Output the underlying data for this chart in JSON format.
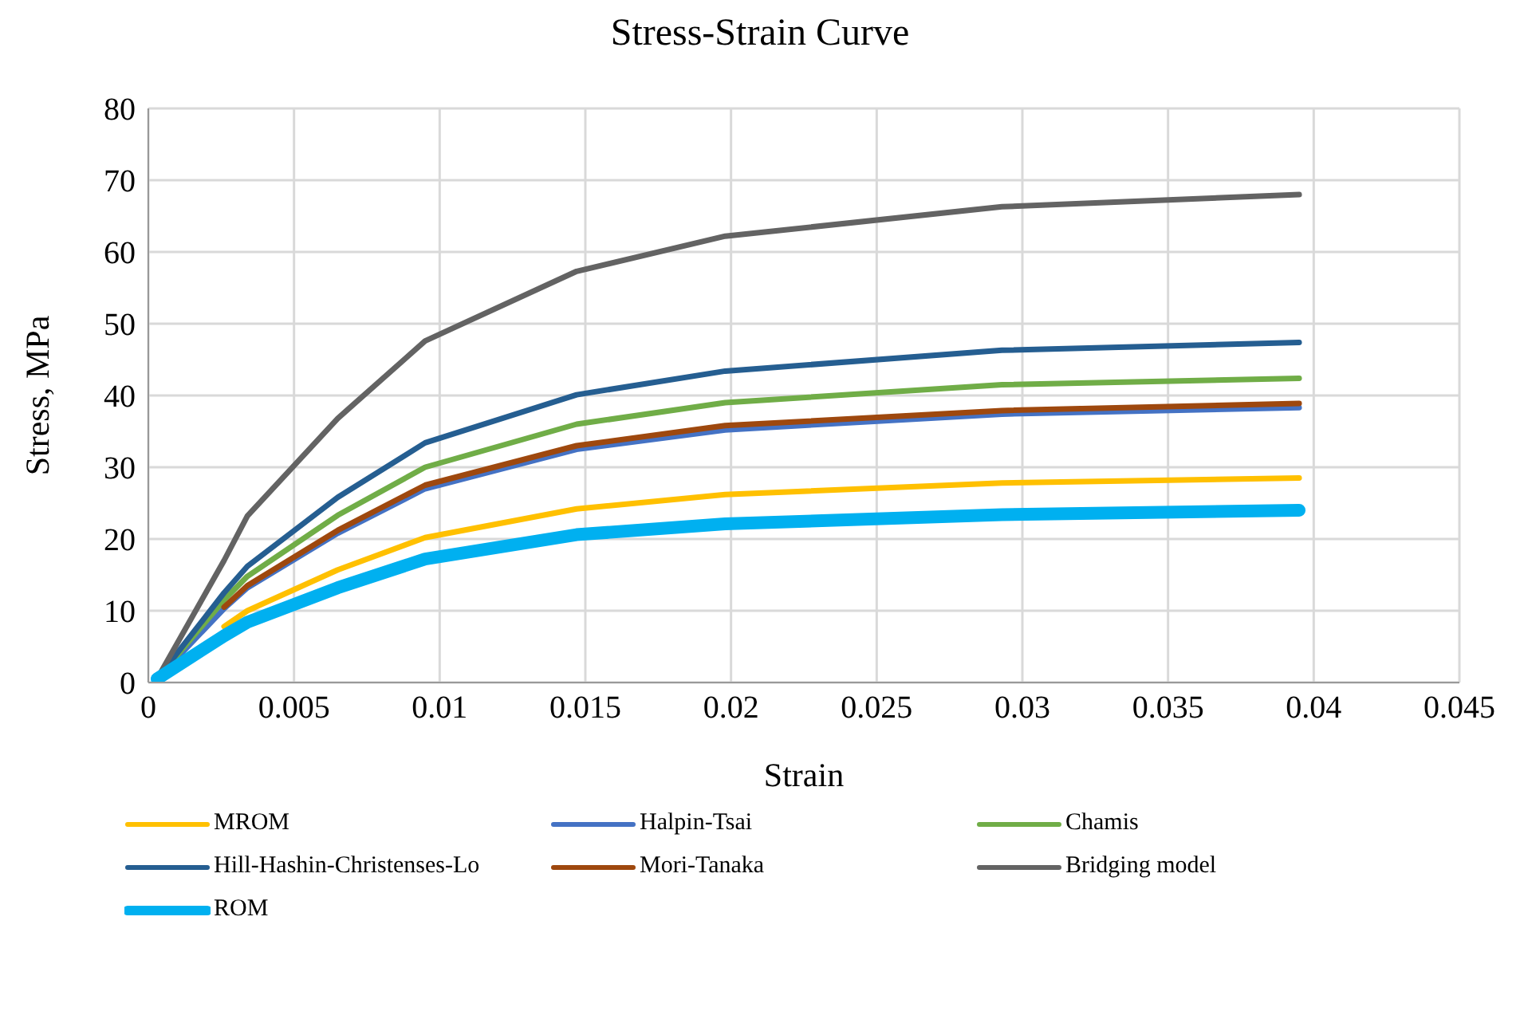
{
  "chart_data": {
    "type": "line",
    "title": "Stress-Strain Curve",
    "xlabel": "Strain",
    "ylabel": "Stress, MPa",
    "x": [
      0.0003,
      0.0026,
      0.0034,
      0.0065,
      0.0095,
      0.0147,
      0.0198,
      0.0293,
      0.0395
    ],
    "xlim": [
      0,
      0.045
    ],
    "xticks": [
      0,
      0.005,
      0.01,
      0.015,
      0.02,
      0.025,
      0.03,
      0.035,
      0.04,
      0.045
    ],
    "ylim": [
      0,
      80
    ],
    "yticks": [
      0,
      10,
      20,
      30,
      40,
      50,
      60,
      70,
      80
    ],
    "grid": true,
    "legend": "bottom",
    "marker": "none",
    "line_style": "solid",
    "series": [
      {
        "name": "MROM",
        "color": "#ffc000",
        "values": [
          null,
          7.8,
          10,
          15.7,
          20.2,
          24.2,
          26.2,
          27.8,
          28.5
        ]
      },
      {
        "name": "Halpin-Tsai",
        "color": "#4472c4",
        "values": [
          0.5,
          10.3,
          13.2,
          20.8,
          27,
          32.5,
          35.2,
          37.4,
          38.3
        ]
      },
      {
        "name": "Chamis",
        "color": "#70ad47",
        "values": [
          0.5,
          11.5,
          14.8,
          23.3,
          30,
          36,
          39,
          41.5,
          42.4
        ]
      },
      {
        "name": "Hill-Hashin-Christenses-Lo",
        "color": "#255e91",
        "values": [
          0.5,
          12.5,
          16.2,
          25.8,
          33.4,
          40.1,
          43.4,
          46.3,
          47.4
        ]
      },
      {
        "name": "Mori-Tanaka",
        "color": "#9e480e",
        "values": [
          null,
          10.5,
          13.5,
          21.2,
          27.5,
          33,
          35.8,
          37.9,
          38.9
        ]
      },
      {
        "name": "Bridging model",
        "color": "#636363",
        "values": [
          0.5,
          17,
          23.2,
          36.8,
          47.6,
          57.3,
          62.2,
          66.3,
          68
        ]
      },
      {
        "name": "ROM",
        "color": "#00b0f0",
        "values": [
          0.5,
          6.5,
          8.4,
          13.2,
          17.2,
          20.6,
          22.1,
          23.4,
          24
        ]
      }
    ]
  }
}
